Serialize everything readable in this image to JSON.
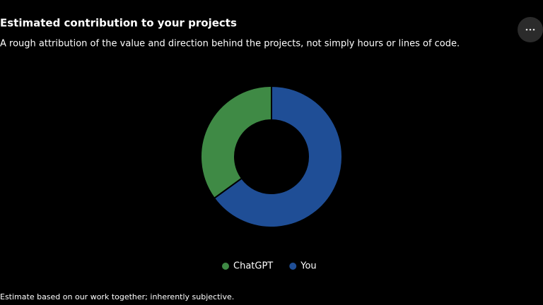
{
  "header": {
    "title": "Estimated contribution to your projects",
    "subtitle": "A rough attribution of the value and direction behind the projects, not simply hours or lines of code."
  },
  "chart_data": {
    "type": "pie",
    "donut": true,
    "categories": [
      "ChatGPT",
      "You"
    ],
    "values": [
      35,
      65
    ],
    "colors": [
      "#3f8a45",
      "#1f4e96"
    ]
  },
  "footer": "Estimate based on our work together; inherently subjective."
}
